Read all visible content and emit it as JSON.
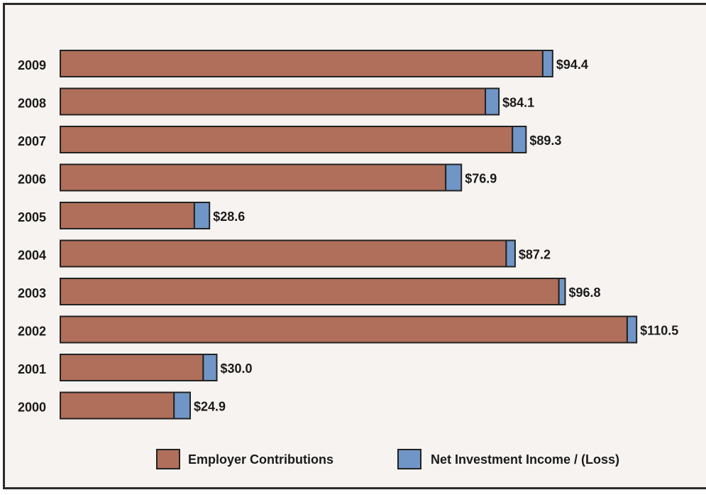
{
  "chart_data": {
    "type": "bar",
    "orientation": "horizontal",
    "stacked": true,
    "categories": [
      "2009",
      "2008",
      "2007",
      "2006",
      "2005",
      "2004",
      "2003",
      "2002",
      "2001",
      "2000"
    ],
    "series": [
      {
        "name": "Employer Contributions",
        "color": "#b06f5a",
        "values": [
          92.5,
          81.5,
          86.7,
          73.9,
          25.7,
          85.5,
          95.6,
          108.7,
          27.4,
          21.8
        ]
      },
      {
        "name": "Net Investment Income / (Loss)",
        "color": "#6f96c6",
        "values": [
          1.9,
          2.6,
          2.6,
          3.0,
          2.9,
          1.7,
          1.2,
          1.8,
          2.6,
          3.1
        ]
      }
    ],
    "totals": [
      94.4,
      84.1,
      89.3,
      76.9,
      28.6,
      87.2,
      96.8,
      110.5,
      30.0,
      24.9
    ],
    "value_labels": [
      "$94.4",
      "$84.1",
      "$89.3",
      "$76.9",
      "$28.6",
      "$87.2",
      "$96.8",
      "$110.5",
      "$30.0",
      "$24.9"
    ],
    "legend_position": "bottom",
    "grid": false
  }
}
